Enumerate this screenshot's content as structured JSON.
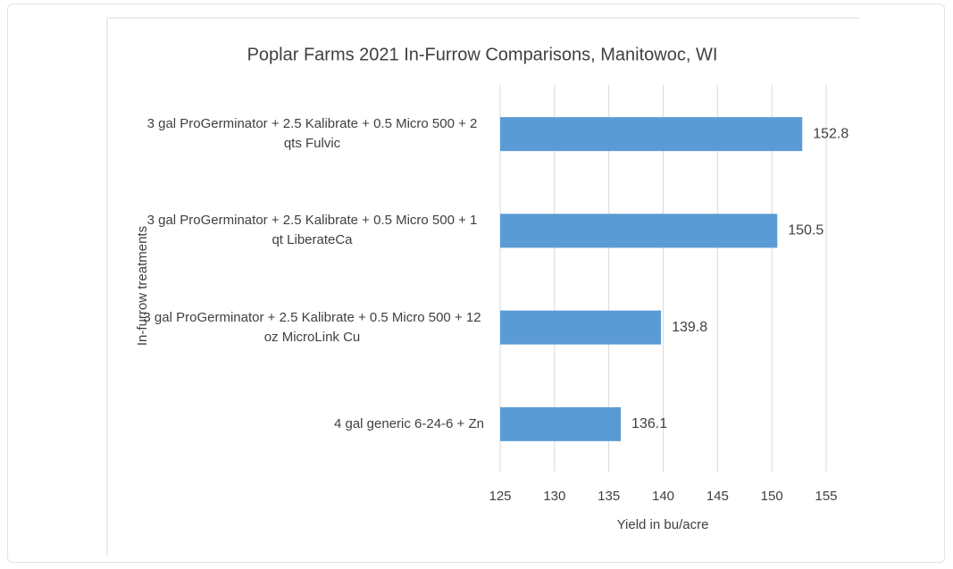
{
  "chart_data": {
    "type": "hbar",
    "title": "Poplar Farms 2021 In-Furrow Comparisons, Manitowoc, WI",
    "x_label": "Yield in bu/acre",
    "y_label": "In-furrow treatments",
    "categories": [
      "3 gal ProGerminator + 2.5 Kalibrate + 0.5 Micro 500 + 2 qts Fulvic",
      "3 gal ProGerminator + 2.5 Kalibrate + 0.5 Micro 500 + 1 qt LiberateCa",
      "3 gal ProGerminator + 2.5 Kalibrate + 0.5 Micro 500 + 12 oz MicroLink Cu",
      "4 gal generic 6-24-6 + Zn"
    ],
    "values": [
      152.8,
      150.5,
      139.8,
      136.1
    ],
    "color": "#5b9bd5",
    "xlim": [
      125,
      155
    ],
    "xticks": [
      125,
      130,
      135,
      140,
      145,
      150,
      155
    ],
    "grid": true
  }
}
